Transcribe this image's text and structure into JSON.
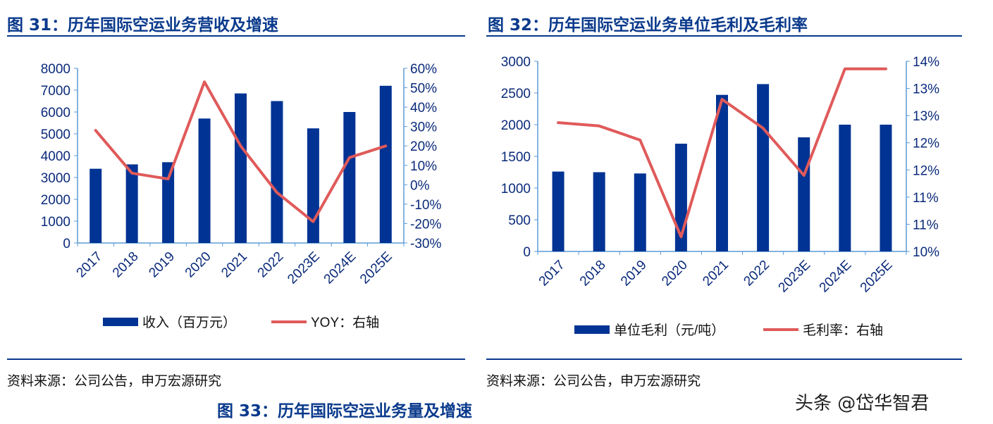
{
  "figures": [
    {
      "title": "图 31：历年国际空运业务营收及增速",
      "source": "资料来源：公司公告，申万宏源研究"
    },
    {
      "title": "图 32：历年国际空运业务单位毛利及毛利率",
      "source": "资料来源：公司公告，申万宏源研究"
    }
  ],
  "next_figure_title": "图 33：历年国际空运业务量及增速",
  "watermark": "头条 @岱华智君",
  "colors": {
    "bar": "#003393",
    "line": "#e05a5a",
    "axis": "#5b9bd5",
    "text": "#0a2a7a"
  },
  "chart_data": [
    {
      "type": "bar+line",
      "categories": [
        "2017",
        "2018",
        "2019",
        "2020",
        "2021",
        "2022",
        "2023E",
        "2024E",
        "2025E"
      ],
      "series": [
        {
          "name": "收入（百万元）",
          "type": "bar",
          "axis": "left",
          "values": [
            3400,
            3600,
            3700,
            5700,
            6850,
            6500,
            5250,
            6000,
            7200
          ]
        },
        {
          "name": "YOY：右轴",
          "type": "line",
          "axis": "right",
          "values": [
            28,
            6,
            3,
            53,
            20,
            -4,
            -19,
            14,
            20
          ]
        }
      ],
      "left_axis": {
        "min": 0,
        "max": 8000,
        "ticks": [
          "0",
          "1000",
          "2000",
          "3000",
          "4000",
          "5000",
          "6000",
          "7000",
          "8000"
        ]
      },
      "right_axis": {
        "min": -30,
        "max": 60,
        "unit": "%",
        "ticks": [
          "-30%",
          "-20%",
          "-10%",
          "0%",
          "10%",
          "20%",
          "30%",
          "40%",
          "50%",
          "60%"
        ]
      },
      "legend": "bottom",
      "grid": false
    },
    {
      "type": "bar+line",
      "categories": [
        "2017",
        "2018",
        "2019",
        "2020",
        "2021",
        "2022",
        "2023E",
        "2024E",
        "2025E"
      ],
      "series": [
        {
          "name": "单位毛利（元/吨）",
          "type": "bar",
          "axis": "left",
          "values": [
            1260,
            1250,
            1230,
            1700,
            2470,
            2640,
            1800,
            2000,
            2000
          ]
        },
        {
          "name": "毛利率：右轴",
          "type": "line",
          "axis": "right",
          "values": [
            12.37,
            12.31,
            12.05,
            10.27,
            12.8,
            12.27,
            11.4,
            13.36,
            13.36
          ]
        }
      ],
      "left_axis": {
        "min": 0,
        "max": 3000,
        "ticks": [
          "0",
          "500",
          "1000",
          "1500",
          "2000",
          "2500",
          "3000"
        ]
      },
      "right_axis": {
        "min": 10,
        "max": 13.5,
        "unit": "%",
        "ticks": [
          "10%",
          "11%",
          "11%",
          "12%",
          "12%",
          "13%",
          "13%",
          "14%"
        ]
      },
      "legend": "bottom",
      "grid": false
    }
  ]
}
